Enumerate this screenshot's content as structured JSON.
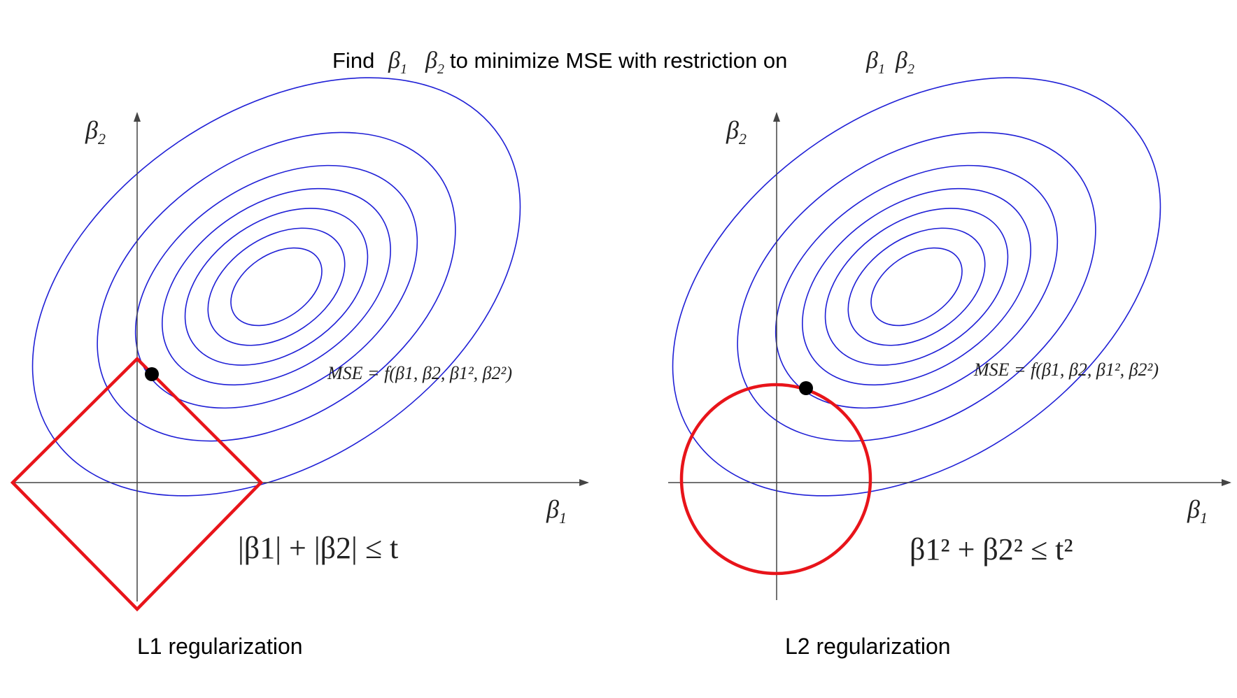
{
  "title": {
    "prefix": "Find",
    "middle": "to minimize MSE with restriction on",
    "beta_symbol": "β",
    "sub1": "1",
    "sub2": "2"
  },
  "panels": [
    {
      "id": "l1",
      "caption": "L1 regularization",
      "axis_x_label": {
        "symbol": "β",
        "sub": "1"
      },
      "axis_y_label": {
        "symbol": "β",
        "sub": "2"
      },
      "mse_label": "MSE = f(β1, β2, β1², β2²)",
      "constraint_text": "|β1| + |β2| ≤ t",
      "constraint_shape": "diamond"
    },
    {
      "id": "l2",
      "caption": "L2 regularization",
      "axis_x_label": {
        "symbol": "β",
        "sub": "1"
      },
      "axis_y_label": {
        "symbol": "β",
        "sub": "2"
      },
      "mse_label": "MSE = f(β1, β2, β1², β2²)",
      "constraint_text": "β1² + β2² ≤ t²",
      "constraint_shape": "circle"
    }
  ],
  "colors": {
    "contour": "#1f1fd6",
    "constraint": "#e8141a",
    "axis": "#444444",
    "point": "#000000"
  }
}
